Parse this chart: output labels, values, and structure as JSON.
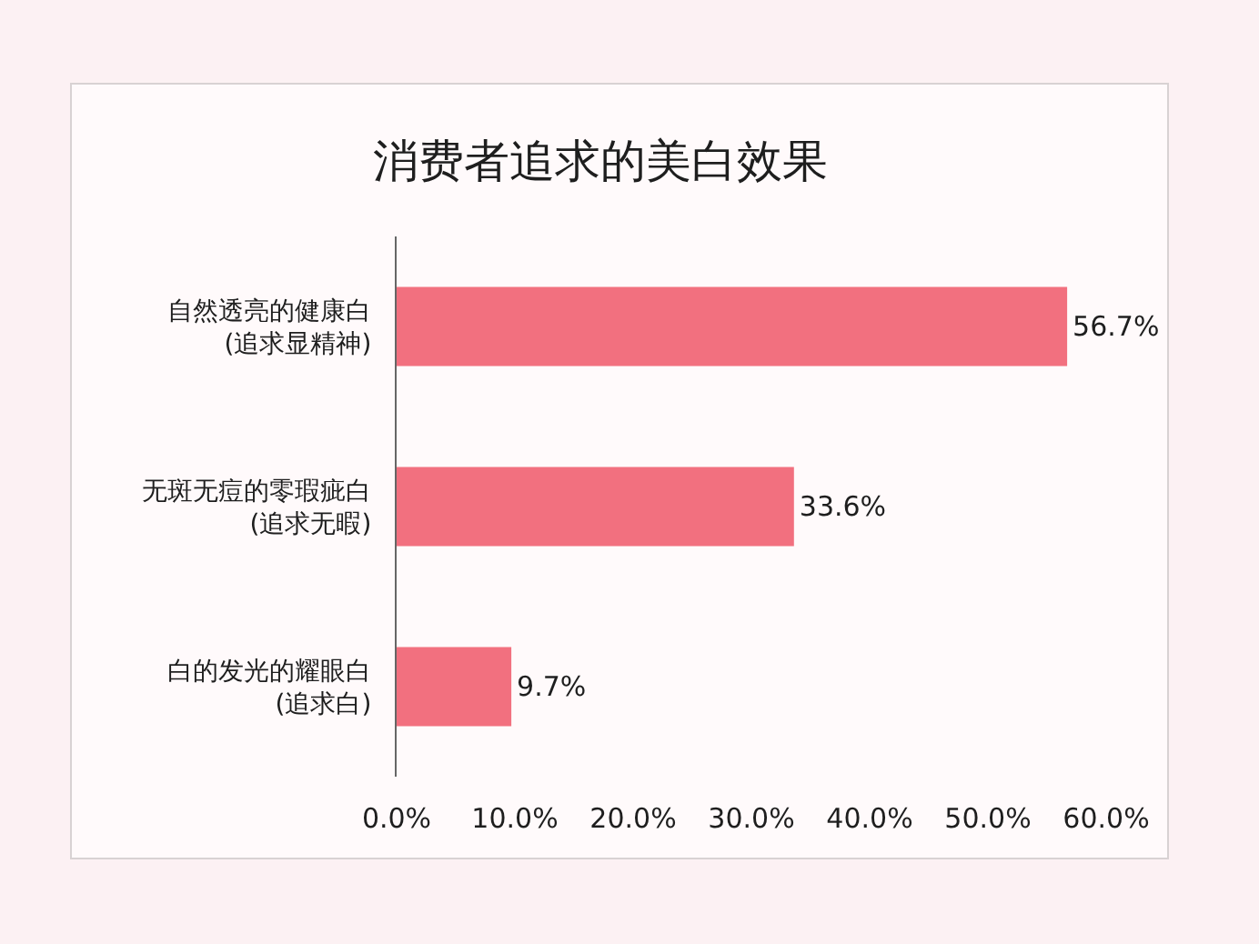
{
  "chart_data": {
    "type": "bar",
    "orientation": "horizontal",
    "title": "消费者追求的美白效果",
    "categories": [
      "自然透亮的健康白\n(追求显精神)",
      "无斑无痘的零瑕疵白\n(追求无暇)",
      "白的发光的耀眼白\n(追求白)"
    ],
    "values": [
      56.7,
      33.6,
      9.7
    ],
    "color": "#f2707f",
    "value_labels": [
      "56.7%",
      "33.6%",
      "9.7%"
    ],
    "xlim": [
      0,
      60
    ],
    "xticks": [
      {
        "value": 0,
        "label": "0.0%"
      },
      {
        "value": 10,
        "label": "10.0%"
      },
      {
        "value": 20,
        "label": "20.0%"
      },
      {
        "value": 30,
        "label": "30.0%"
      },
      {
        "value": 40,
        "label": "40.0%"
      },
      {
        "value": 50,
        "label": "50.0%"
      },
      {
        "value": 60,
        "label": "60.0%"
      }
    ]
  }
}
